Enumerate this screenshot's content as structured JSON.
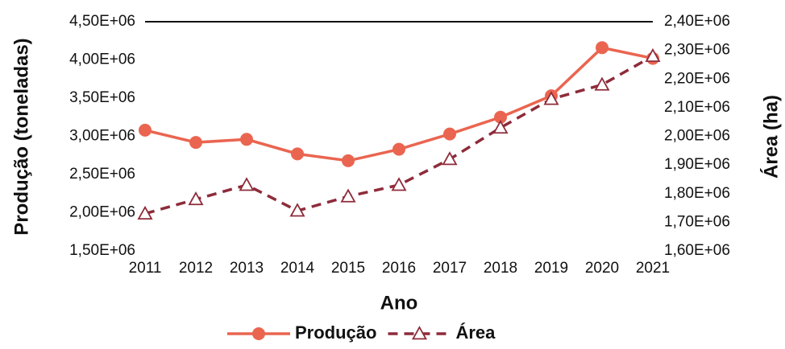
{
  "chart_data": {
    "type": "line",
    "ylabel": "Produção (toneladas)",
    "y2label": "Área (ha)",
    "xlabel": "Ano",
    "x": [
      2011,
      2012,
      2013,
      2014,
      2015,
      2016,
      2017,
      2018,
      2019,
      2020,
      2021
    ],
    "xlim": [
      2011,
      2021
    ],
    "series": [
      {
        "name": "Produção",
        "color": "#ea6550",
        "marker": "circle",
        "dash": false,
        "values": [
          3080000,
          2920000,
          2960000,
          2770000,
          2680000,
          2830000,
          3030000,
          3250000,
          3530000,
          4160000,
          4020000
        ]
      },
      {
        "name": "Área",
        "color": "#8e2b3a",
        "marker": "triangle",
        "dash": true,
        "axis": "y2",
        "values": [
          1730000,
          1780000,
          1830000,
          1740000,
          1790000,
          1830000,
          1920000,
          2030000,
          2130000,
          2180000,
          2280000
        ]
      }
    ],
    "ylim": [
      1500000,
      4500000
    ],
    "yticks": [
      {
        "value": 1500000,
        "label": "1,50E+06"
      },
      {
        "value": 2000000,
        "label": "2,00E+06"
      },
      {
        "value": 2500000,
        "label": "2,50E+06"
      },
      {
        "value": 3000000,
        "label": "3,00E+06"
      },
      {
        "value": 3500000,
        "label": "3,50E+06"
      },
      {
        "value": 4000000,
        "label": "4,00E+06"
      },
      {
        "value": 4500000,
        "label": "4,50E+06"
      }
    ],
    "y2lim": [
      1600000,
      2400000
    ],
    "y2ticks": [
      {
        "value": 1600000,
        "label": "1,60E+06"
      },
      {
        "value": 1700000,
        "label": "1,70E+06"
      },
      {
        "value": 1800000,
        "label": "1,80E+06"
      },
      {
        "value": 1900000,
        "label": "1,90E+06"
      },
      {
        "value": 2000000,
        "label": "2,00E+06"
      },
      {
        "value": 2100000,
        "label": "2,10E+06"
      },
      {
        "value": 2200000,
        "label": "2,20E+06"
      },
      {
        "value": 2300000,
        "label": "2,30E+06"
      },
      {
        "value": 2400000,
        "label": "2,40E+06"
      }
    ],
    "legend": "bottom",
    "grid": false
  }
}
